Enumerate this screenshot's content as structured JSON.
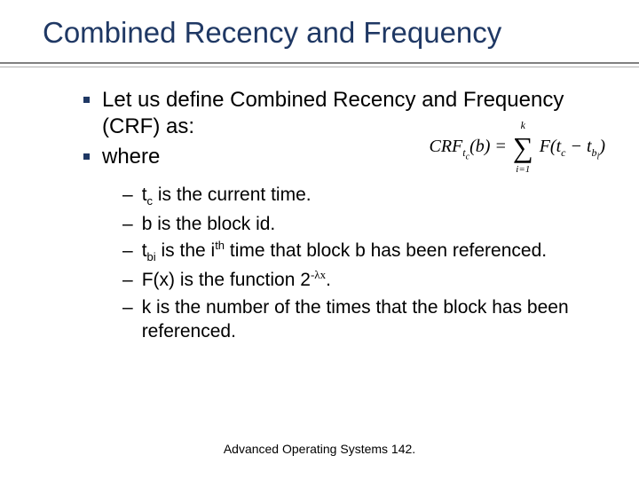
{
  "title": "Combined Recency and Frequency",
  "bullets": [
    "Let us define Combined Recency and Frequency (CRF) as:",
    "where"
  ],
  "formula": {
    "lhs_var": "CRF",
    "lhs_sub": "t",
    "lhs_subsub": "c",
    "arg": "b",
    "sum_top": "k",
    "sum_bottom": "i=1",
    "func": "F",
    "inner1_var": "t",
    "inner1_sub": "c",
    "minus": "−",
    "inner2_var": "t",
    "inner2_sub": "b",
    "inner2_subsub": "i"
  },
  "subitems": {
    "s0_pre": "t",
    "s0_sub": "c",
    "s0_post": " is the current time.",
    "s1": "b is the block id.",
    "s2_pre": "t",
    "s2_sub": "bi",
    "s2_mid": " is the i",
    "s2_sup": "th",
    "s2_post": " time that block b has been referenced.",
    "s3_pre": "F(x) is the function 2",
    "s3_sup": "-λx",
    "s3_post": ".",
    "s4": "k is the number of the times that the block has been referenced."
  },
  "footer": "Advanced Operating Systems 142.",
  "colors": {
    "title": "#1f3864",
    "bullet": "#1f3864",
    "text": "#000000",
    "rule": "#808080",
    "background": "#ffffff"
  },
  "typography": {
    "title_fontsize": 33,
    "body_fontsize": 24,
    "sub_fontsize": 21,
    "footer_fontsize": 14
  }
}
